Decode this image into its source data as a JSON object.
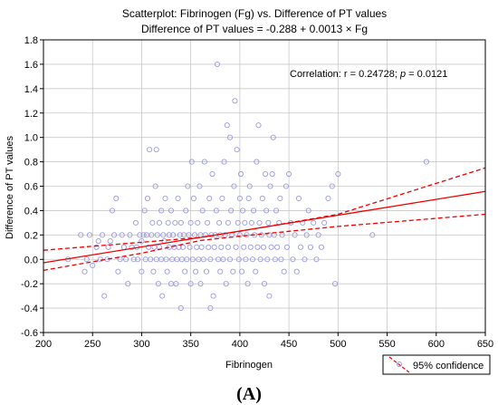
{
  "chart_data": {
    "type": "scatter",
    "title": "Scatterplot: Fibrinogen (Fg) vs. Difference of PT values",
    "subtitle": "Difference of PT values = -0.288 + 0.0013 × Fg",
    "xlabel": "Fibrinogen",
    "ylabel": "Difference of PT values",
    "xlim": [
      200,
      650
    ],
    "ylim": [
      -0.6,
      1.8
    ],
    "xticks": [
      "200",
      "250",
      "300",
      "350",
      "400",
      "450",
      "500",
      "550",
      "600",
      "650"
    ],
    "yticks": [
      "-0.6",
      "-0.4",
      "-0.2",
      "0.0",
      "0.2",
      "0.4",
      "0.6",
      "0.8",
      "1.0",
      "1.2",
      "1.4",
      "1.6",
      "1.8"
    ],
    "grid": true,
    "correlation_prefix": "Correlation: r = 0.24728; ",
    "correlation_p": "p",
    "correlation_suffix": " = 0.0121",
    "legend": "95% confidence",
    "legend_placement": "bottom-right",
    "panel_label": "(A)",
    "colors": {
      "points": "#9a9ae0",
      "fit": "#ee0000",
      "grid": "#c8c8c8"
    },
    "regression": {
      "intercept": -0.288,
      "slope": 0.0013
    },
    "confidence_band": {
      "lower": [
        [
          200,
          -0.09
        ],
        [
          300,
          0.05
        ],
        [
          360,
          0.155
        ],
        [
          400,
          0.19
        ],
        [
          500,
          0.27
        ],
        [
          650,
          0.37
        ]
      ],
      "upper": [
        [
          200,
          0.075
        ],
        [
          300,
          0.14
        ],
        [
          360,
          0.18
        ],
        [
          400,
          0.23
        ],
        [
          500,
          0.37
        ],
        [
          650,
          0.75
        ]
      ]
    },
    "points": [
      [
        225,
        0.0
      ],
      [
        238,
        0.2
      ],
      [
        242,
        -0.1
      ],
      [
        244,
        0.0
      ],
      [
        247,
        0.2
      ],
      [
        250,
        -0.05
      ],
      [
        254,
        0.1
      ],
      [
        256,
        0.15
      ],
      [
        258,
        0.0
      ],
      [
        260,
        0.2
      ],
      [
        262,
        -0.3
      ],
      [
        265,
        0.0
      ],
      [
        266,
        0.1
      ],
      [
        268,
        0.15
      ],
      [
        270,
        0.4
      ],
      [
        272,
        0.2
      ],
      [
        274,
        0.5
      ],
      [
        276,
        -0.1
      ],
      [
        278,
        0.0
      ],
      [
        280,
        0.2
      ],
      [
        282,
        0.1
      ],
      [
        284,
        0.0
      ],
      [
        286,
        -0.2
      ],
      [
        288,
        0.2
      ],
      [
        290,
        0.1
      ],
      [
        292,
        0.0
      ],
      [
        294,
        0.3
      ],
      [
        295,
        0.1
      ],
      [
        296,
        0.0
      ],
      [
        298,
        0.2
      ],
      [
        300,
        -0.1
      ],
      [
        300,
        0.15
      ],
      [
        302,
        0.2
      ],
      [
        303,
        0.4
      ],
      [
        304,
        0.0
      ],
      [
        305,
        0.2
      ],
      [
        306,
        0.5
      ],
      [
        307,
        0.1
      ],
      [
        308,
        0.9
      ],
      [
        309,
        0.0
      ],
      [
        310,
        0.2
      ],
      [
        311,
        0.3
      ],
      [
        312,
        -0.1
      ],
      [
        313,
        0.1
      ],
      [
        314,
        0.6
      ],
      [
        315,
        0.9
      ],
      [
        315,
        0.0
      ],
      [
        316,
        0.2
      ],
      [
        317,
        -0.2
      ],
      [
        318,
        0.1
      ],
      [
        318,
        0.3
      ],
      [
        320,
        0.4
      ],
      [
        320,
        0.0
      ],
      [
        321,
        -0.3
      ],
      [
        322,
        0.2
      ],
      [
        323,
        0.15
      ],
      [
        324,
        0.5
      ],
      [
        325,
        0.0
      ],
      [
        326,
        -0.1
      ],
      [
        327,
        0.3
      ],
      [
        328,
        0.1
      ],
      [
        328,
        0.2
      ],
      [
        330,
        0.4
      ],
      [
        330,
        -0.2
      ],
      [
        331,
        0.0
      ],
      [
        332,
        0.2
      ],
      [
        333,
        0.1
      ],
      [
        334,
        0.3
      ],
      [
        335,
        -0.2
      ],
      [
        336,
        0.0
      ],
      [
        337,
        0.5
      ],
      [
        338,
        0.1
      ],
      [
        339,
        0.2
      ],
      [
        340,
        -0.4
      ],
      [
        340,
        0.3
      ],
      [
        341,
        0.0
      ],
      [
        342,
        0.1
      ],
      [
        343,
        0.2
      ],
      [
        344,
        -0.1
      ],
      [
        345,
        0.4
      ],
      [
        346,
        0.0
      ],
      [
        347,
        0.6
      ],
      [
        348,
        0.2
      ],
      [
        349,
        0.1
      ],
      [
        350,
        -0.2
      ],
      [
        350,
        0.3
      ],
      [
        351,
        0.8
      ],
      [
        352,
        0.0
      ],
      [
        353,
        0.5
      ],
      [
        354,
        0.2
      ],
      [
        355,
        -0.1
      ],
      [
        356,
        0.1
      ],
      [
        357,
        0.3
      ],
      [
        358,
        0.0
      ],
      [
        359,
        0.6
      ],
      [
        360,
        0.2
      ],
      [
        360,
        -0.2
      ],
      [
        361,
        0.1
      ],
      [
        362,
        0.4
      ],
      [
        363,
        0.0
      ],
      [
        364,
        0.8
      ],
      [
        365,
        0.2
      ],
      [
        366,
        -0.1
      ],
      [
        367,
        0.3
      ],
      [
        368,
        0.1
      ],
      [
        369,
        0.5
      ],
      [
        370,
        0.0
      ],
      [
        370,
        -0.4
      ],
      [
        371,
        0.2
      ],
      [
        372,
        0.7
      ],
      [
        373,
        -0.3
      ],
      [
        374,
        0.1
      ],
      [
        375,
        0.2
      ],
      [
        376,
        0.4
      ],
      [
        377,
        1.6
      ],
      [
        378,
        0.0
      ],
      [
        379,
        0.3
      ],
      [
        380,
        0.2
      ],
      [
        380,
        -0.1
      ],
      [
        381,
        0.1
      ],
      [
        382,
        0.5
      ],
      [
        383,
        0.0
      ],
      [
        384,
        0.8
      ],
      [
        385,
        0.2
      ],
      [
        386,
        -0.2
      ],
      [
        387,
        1.1
      ],
      [
        388,
        0.3
      ],
      [
        388,
        0.1
      ],
      [
        390,
        1.0
      ],
      [
        390,
        0.0
      ],
      [
        391,
        0.4
      ],
      [
        392,
        0.2
      ],
      [
        393,
        -0.1
      ],
      [
        394,
        0.6
      ],
      [
        395,
        1.3
      ],
      [
        396,
        0.1
      ],
      [
        397,
        0.9
      ],
      [
        398,
        0.3
      ],
      [
        399,
        0.0
      ],
      [
        400,
        0.5
      ],
      [
        400,
        0.2
      ],
      [
        401,
        0.7
      ],
      [
        402,
        -0.1
      ],
      [
        403,
        0.4
      ],
      [
        404,
        0.1
      ],
      [
        405,
        0.3
      ],
      [
        406,
        0.0
      ],
      [
        407,
        0.2
      ],
      [
        408,
        -0.2
      ],
      [
        409,
        0.5
      ],
      [
        410,
        0.6
      ],
      [
        411,
        0.1
      ],
      [
        412,
        0.3
      ],
      [
        413,
        0.0
      ],
      [
        414,
        0.4
      ],
      [
        415,
        0.2
      ],
      [
        416,
        -0.1
      ],
      [
        417,
        0.8
      ],
      [
        418,
        0.1
      ],
      [
        419,
        1.1
      ],
      [
        420,
        0.3
      ],
      [
        421,
        0.0
      ],
      [
        422,
        0.2
      ],
      [
        423,
        0.5
      ],
      [
        424,
        0.1
      ],
      [
        425,
        -0.2
      ],
      [
        426,
        0.7
      ],
      [
        427,
        0.4
      ],
      [
        428,
        0.0
      ],
      [
        429,
        0.3
      ],
      [
        430,
        -0.3
      ],
      [
        430,
        0.2
      ],
      [
        431,
        0.6
      ],
      [
        432,
        0.1
      ],
      [
        433,
        0.7
      ],
      [
        434,
        1.0
      ],
      [
        435,
        0.2
      ],
      [
        436,
        0.0
      ],
      [
        437,
        0.4
      ],
      [
        438,
        0.1
      ],
      [
        440,
        0.3
      ],
      [
        441,
        0.5
      ],
      [
        442,
        0.0
      ],
      [
        443,
        0.2
      ],
      [
        445,
        -0.1
      ],
      [
        447,
        0.6
      ],
      [
        448,
        0.1
      ],
      [
        450,
        0.7
      ],
      [
        452,
        0.3
      ],
      [
        454,
        0.0
      ],
      [
        456,
        0.2
      ],
      [
        458,
        -0.1
      ],
      [
        460,
        0.5
      ],
      [
        462,
        0.1
      ],
      [
        464,
        0.3
      ],
      [
        466,
        0.0
      ],
      [
        468,
        0.2
      ],
      [
        470,
        0.4
      ],
      [
        472,
        0.1
      ],
      [
        475,
        0.3
      ],
      [
        478,
        0.0
      ],
      [
        480,
        0.2
      ],
      [
        483,
        0.1
      ],
      [
        486,
        0.3
      ],
      [
        490,
        0.5
      ],
      [
        494,
        0.6
      ],
      [
        497,
        -0.2
      ],
      [
        500,
        0.7
      ],
      [
        535,
        0.2
      ],
      [
        590,
        0.8
      ]
    ]
  }
}
